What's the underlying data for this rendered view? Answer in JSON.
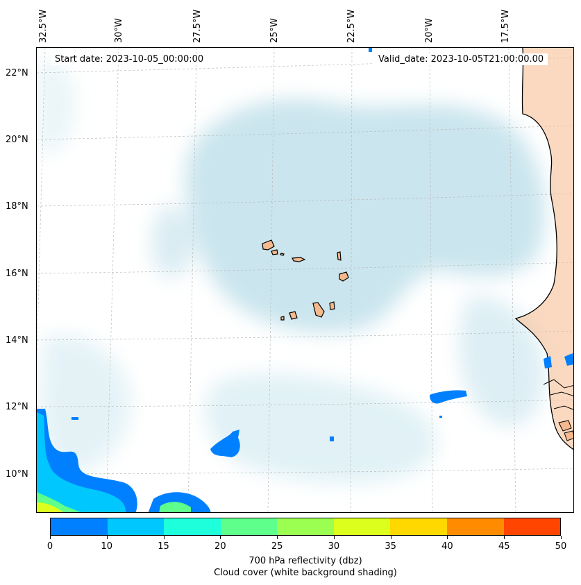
{
  "map": {
    "start_date": "Start date: 2023-10-05_00:00:00",
    "valid_date": "Valid_date: 2023-10-05T21:00:00.00",
    "lon_labels": [
      "32.5°W",
      "30°W",
      "27.5°W",
      "25°W",
      "22.5°W",
      "20°W",
      "17.5°W"
    ],
    "lat_labels": [
      "22°N",
      "20°N",
      "18°N",
      "16°N",
      "14°N",
      "12°N",
      "10°N"
    ],
    "colors": {
      "cloud": "#b9dde8",
      "land": "#f5b98d",
      "coast": "#000000",
      "gridline": "#bbbbbb"
    }
  },
  "colorbar": {
    "colors": [
      "#0080ff",
      "#00c8ff",
      "#1effdc",
      "#5fff8c",
      "#9aff50",
      "#dcff1e",
      "#ffd800",
      "#ff8c00",
      "#ff4500"
    ],
    "ticks": [
      "0",
      "10",
      "15",
      "20",
      "25",
      "30",
      "35",
      "40",
      "45",
      "50"
    ],
    "title_line1": "700 hPa reflectivity (dbz)",
    "title_line2": "Cloud cover (white background shading)"
  }
}
